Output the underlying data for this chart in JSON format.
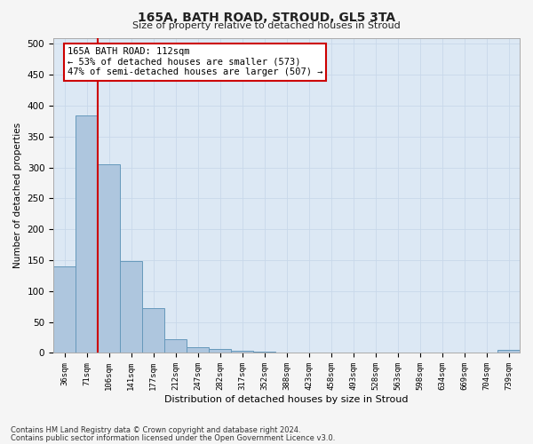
{
  "title1": "165A, BATH ROAD, STROUD, GL5 3TA",
  "title2": "Size of property relative to detached houses in Stroud",
  "xlabel": "Distribution of detached houses by size in Stroud",
  "ylabel": "Number of detached properties",
  "footnote1": "Contains HM Land Registry data © Crown copyright and database right 2024.",
  "footnote2": "Contains public sector information licensed under the Open Government Licence v3.0.",
  "bin_labels": [
    "36sqm",
    "71sqm",
    "106sqm",
    "141sqm",
    "177sqm",
    "212sqm",
    "247sqm",
    "282sqm",
    "317sqm",
    "352sqm",
    "388sqm",
    "423sqm",
    "458sqm",
    "493sqm",
    "528sqm",
    "563sqm",
    "598sqm",
    "634sqm",
    "669sqm",
    "704sqm",
    "739sqm"
  ],
  "bar_heights": [
    140,
    385,
    305,
    148,
    72,
    22,
    10,
    7,
    4,
    2,
    1,
    1,
    0,
    0,
    0,
    0,
    0,
    0,
    0,
    0,
    5
  ],
  "bar_color": "#aec6de",
  "bar_edge_color": "#6699bb",
  "grid_color": "#c8d8ea",
  "background_color": "#dce8f4",
  "annotation_text": "165A BATH ROAD: 112sqm\n← 53% of detached houses are smaller (573)\n47% of semi-detached houses are larger (507) →",
  "annotation_box_color": "#ffffff",
  "annotation_border_color": "#cc0000",
  "red_line_color": "#cc0000",
  "ylim": [
    0,
    510
  ],
  "yticks": [
    0,
    50,
    100,
    150,
    200,
    250,
    300,
    350,
    400,
    450,
    500
  ],
  "fig_bg_color": "#f5f5f5"
}
